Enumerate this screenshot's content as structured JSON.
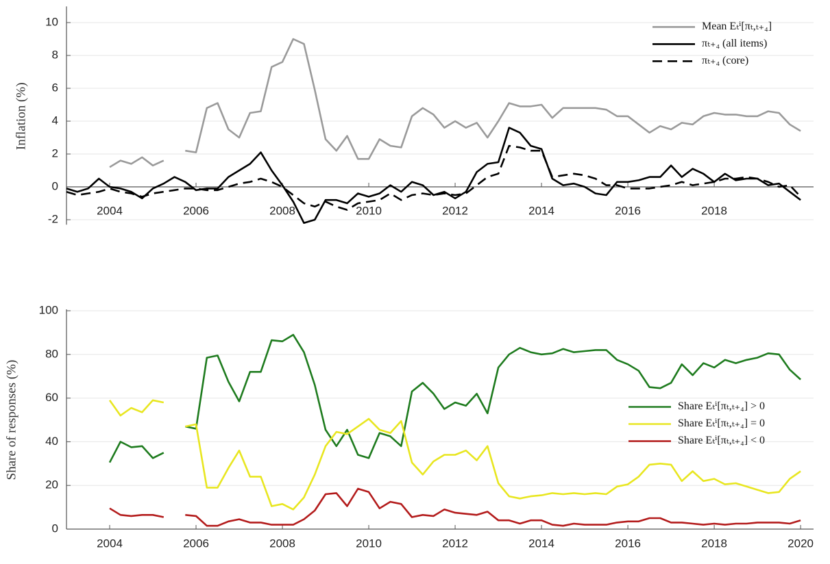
{
  "chart_data": [
    {
      "type": "line",
      "ylabel": "Inflation (%)",
      "x": [
        2003,
        2003.25,
        2003.5,
        2003.75,
        2004,
        2004.25,
        2004.5,
        2004.75,
        2005,
        2005.25,
        2005.5,
        2005.75,
        2006,
        2006.25,
        2006.5,
        2006.75,
        2007,
        2007.25,
        2007.5,
        2007.75,
        2008,
        2008.25,
        2008.5,
        2008.75,
        2009,
        2009.25,
        2009.5,
        2009.75,
        2010,
        2010.25,
        2010.5,
        2010.75,
        2011,
        2011.25,
        2011.5,
        2011.75,
        2012,
        2012.25,
        2012.5,
        2012.75,
        2013,
        2013.25,
        2013.5,
        2013.75,
        2014,
        2014.25,
        2014.5,
        2014.75,
        2015,
        2015.25,
        2015.5,
        2015.75,
        2016,
        2016.25,
        2016.5,
        2016.75,
        2017,
        2017.25,
        2017.5,
        2017.75,
        2018,
        2018.25,
        2018.5,
        2018.75,
        2019,
        2019.25,
        2019.5,
        2019.75,
        2020
      ],
      "series": [
        {
          "name": "Mean Eₜⁱ[πₜ,ₜ₊₄]",
          "color": "#9a9a9a",
          "linestyle": "solid",
          "values": [
            null,
            null,
            null,
            null,
            1.2,
            1.6,
            1.4,
            1.8,
            1.3,
            1.6,
            null,
            2.2,
            2.1,
            4.8,
            5.1,
            3.5,
            3.0,
            4.5,
            4.6,
            7.3,
            7.6,
            9.0,
            8.7,
            5.9,
            2.9,
            2.2,
            3.1,
            1.7,
            1.7,
            2.9,
            2.5,
            2.4,
            4.3,
            4.8,
            4.4,
            3.6,
            4.0,
            3.6,
            3.9,
            3.0,
            4.0,
            5.1,
            4.9,
            4.9,
            5.0,
            4.2,
            4.8,
            4.8,
            4.8,
            4.8,
            4.7,
            4.3,
            4.3,
            3.8,
            3.3,
            3.7,
            3.5,
            3.9,
            3.8,
            4.3,
            4.5,
            4.4,
            4.4,
            4.3,
            4.3,
            4.6,
            4.5,
            3.8,
            3.4
          ]
        },
        {
          "name": "πₜ₊₄ (all items)",
          "color": "#000000",
          "linestyle": "solid",
          "values": [
            -0.1,
            -0.3,
            -0.1,
            0.5,
            0.0,
            -0.1,
            -0.3,
            -0.7,
            -0.1,
            0.2,
            0.6,
            0.3,
            -0.2,
            -0.1,
            -0.1,
            0.6,
            1.0,
            1.4,
            2.1,
            1.0,
            0.1,
            -0.9,
            -2.2,
            -2.0,
            -0.8,
            -0.8,
            -1.0,
            -0.4,
            -0.6,
            -0.4,
            0.1,
            -0.3,
            0.3,
            0.1,
            -0.5,
            -0.3,
            -0.7,
            -0.3,
            0.9,
            1.4,
            1.5,
            3.6,
            3.3,
            2.5,
            2.3,
            0.5,
            0.1,
            0.2,
            0.0,
            -0.4,
            -0.5,
            0.3,
            0.3,
            0.4,
            0.6,
            0.6,
            1.3,
            0.6,
            1.1,
            0.8,
            0.3,
            0.8,
            0.4,
            0.5,
            0.5,
            0.1,
            0.2,
            -0.3,
            -0.8
          ]
        },
        {
          "name": "πₜ₊₄ (core)",
          "color": "#000000",
          "linestyle": "dashed",
          "values": [
            -0.3,
            -0.5,
            -0.4,
            -0.3,
            -0.1,
            -0.3,
            -0.4,
            -0.6,
            -0.4,
            -0.3,
            -0.2,
            -0.1,
            -0.1,
            -0.2,
            -0.2,
            0.0,
            0.2,
            0.3,
            0.5,
            0.3,
            0.0,
            -0.5,
            -1.0,
            -1.2,
            -0.9,
            -1.2,
            -1.4,
            -1.0,
            -0.9,
            -0.8,
            -0.4,
            -0.8,
            -0.5,
            -0.4,
            -0.5,
            -0.4,
            -0.5,
            -0.4,
            0.1,
            0.6,
            0.8,
            2.5,
            2.4,
            2.2,
            2.2,
            0.6,
            0.7,
            0.8,
            0.7,
            0.5,
            0.1,
            0.1,
            -0.1,
            -0.1,
            -0.1,
            0.0,
            0.1,
            0.3,
            0.1,
            0.2,
            0.3,
            0.5,
            0.5,
            0.6,
            0.5,
            0.3,
            0.0,
            0.1,
            -0.6
          ]
        }
      ],
      "xlim": [
        2003,
        2020.3
      ],
      "ylim": [
        -2.3,
        10.9
      ],
      "xticks": [
        2004,
        2006,
        2008,
        2010,
        2012,
        2014,
        2016,
        2018
      ],
      "yticks": [
        -2,
        0,
        2,
        4,
        6,
        8,
        10
      ],
      "grid": true,
      "legend": "upper right"
    },
    {
      "type": "line",
      "ylabel": "Share of responses (%)",
      "x": [
        2003,
        2003.25,
        2003.5,
        2003.75,
        2004,
        2004.25,
        2004.5,
        2004.75,
        2005,
        2005.25,
        2005.5,
        2005.75,
        2006,
        2006.25,
        2006.5,
        2006.75,
        2007,
        2007.25,
        2007.5,
        2007.75,
        2008,
        2008.25,
        2008.5,
        2008.75,
        2009,
        2009.25,
        2009.5,
        2009.75,
        2010,
        2010.25,
        2010.5,
        2010.75,
        2011,
        2011.25,
        2011.5,
        2011.75,
        2012,
        2012.25,
        2012.5,
        2012.75,
        2013,
        2013.25,
        2013.5,
        2013.75,
        2014,
        2014.25,
        2014.5,
        2014.75,
        2015,
        2015.25,
        2015.5,
        2015.75,
        2016,
        2016.25,
        2016.5,
        2016.75,
        2017,
        2017.25,
        2017.5,
        2017.75,
        2018,
        2018.25,
        2018.5,
        2018.75,
        2019,
        2019.25,
        2019.5,
        2019.75,
        2020
      ],
      "series": [
        {
          "name": "Share Eₜⁱ[πₜ,ₜ₊₄] > 0",
          "color": "#1e7b1e",
          "linestyle": "solid",
          "values": [
            null,
            null,
            null,
            null,
            30.5,
            40,
            37.5,
            38,
            32.5,
            35,
            null,
            47,
            46,
            78.5,
            79.5,
            67.5,
            58.5,
            72,
            72,
            86.5,
            86,
            89,
            81,
            66,
            45.5,
            38,
            45.5,
            34,
            32.5,
            44,
            42.5,
            38,
            63,
            67,
            62,
            55,
            58,
            56.5,
            62,
            53,
            74,
            80,
            83,
            81,
            80,
            80.5,
            82.5,
            81,
            81.5,
            82,
            82,
            77.5,
            75.5,
            72.5,
            65,
            64.5,
            67,
            75.5,
            70.5,
            76,
            74,
            77.5,
            76,
            77.5,
            78.5,
            80.5,
            80,
            73,
            68.5
          ]
        },
        {
          "name": "Share Eₜⁱ[πₜ,ₜ₊₄] = 0",
          "color": "#e8e620",
          "linestyle": "solid",
          "values": [
            null,
            null,
            null,
            null,
            59,
            52,
            55.5,
            53.5,
            59,
            58,
            null,
            47,
            48,
            19,
            19,
            28,
            36,
            24,
            24,
            10.5,
            11.5,
            9,
            14.5,
            25,
            38,
            44.5,
            43.5,
            47,
            50.5,
            45.5,
            44,
            49.5,
            30.5,
            25,
            31,
            34,
            34,
            36,
            31.5,
            38,
            21,
            15,
            14,
            15,
            15.5,
            16.5,
            16,
            16.5,
            16,
            16.5,
            16,
            19.5,
            20.5,
            24,
            29.5,
            30,
            29.5,
            22,
            26.5,
            22,
            23,
            20.5,
            21,
            19.5,
            18,
            16.5,
            17,
            23,
            26.5
          ]
        },
        {
          "name": "Share Eₜⁱ[πₜ,ₜ₊₄] < 0",
          "color": "#b31b1b",
          "linestyle": "solid",
          "values": [
            null,
            null,
            null,
            null,
            9.5,
            6.5,
            6,
            6.5,
            6.5,
            5.5,
            null,
            6.5,
            6,
            1.5,
            1.5,
            3.5,
            4.5,
            3,
            3,
            2,
            2,
            2,
            4.5,
            8.5,
            16,
            16.5,
            10.5,
            18.5,
            17,
            9.5,
            12.5,
            11.5,
            5.5,
            6.5,
            6,
            9,
            7.5,
            7,
            6.5,
            8,
            4,
            4,
            2.5,
            4,
            4,
            2,
            1.5,
            2.5,
            2,
            2,
            2,
            3,
            3.5,
            3.5,
            5,
            5,
            3,
            3,
            2.5,
            2,
            2.5,
            2,
            2.5,
            2.5,
            3,
            3,
            3,
            2.5,
            4
          ]
        }
      ],
      "xlim": [
        2003,
        2020.3
      ],
      "ylim": [
        0,
        100
      ],
      "xticks": [
        2004,
        2006,
        2008,
        2010,
        2012,
        2014,
        2016,
        2018,
        2020
      ],
      "yticks": [
        0,
        20,
        40,
        60,
        80,
        100
      ],
      "grid": true,
      "legend": "center right"
    }
  ]
}
